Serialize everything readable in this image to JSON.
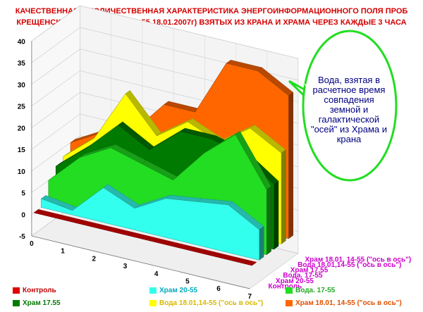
{
  "title": {
    "line1": "КАЧЕСТВЕННАЯ И КОЛИЧЕСТВЕННАЯ ХАРАКТЕРИСТИКА ЭНЕРГОИНФОРМАЦИОННОГО ПОЛЯ ПРОБ",
    "line2": "КРЕЩЕНСКОЙ ВОДЫ, (max в 14-55 18.01.2007г) ВЗЯТЫХ ИЗ КРАНА И ХРАМА ЧЕРЕЗ КАЖДЫЕ 3 ЧАСА"
  },
  "callout": "Вода, взятая в расчетное время совпадения земной и галактической \"осей\" из Храма и крана",
  "chart_data": {
    "type": "area",
    "subtype": "3d-area",
    "x": [
      0,
      1,
      2,
      3,
      4,
      5,
      6,
      7
    ],
    "ylim": [
      -5,
      40
    ],
    "yticks": [
      -5,
      0,
      5,
      10,
      15,
      20,
      25,
      30,
      35,
      40
    ],
    "grid": true,
    "legend_position": "bottom",
    "series": [
      {
        "name": "Контроль",
        "color": "#e00000",
        "values": [
          0,
          0,
          0,
          0,
          0,
          0,
          0,
          0
        ]
      },
      {
        "name": "Храм 20-55",
        "color": "#33ffee",
        "values": [
          2,
          1,
          8,
          5,
          9,
          10,
          11,
          7
        ]
      },
      {
        "name": "Вода. 17-55",
        "color": "#22dd22",
        "values": [
          5,
          12,
          16,
          14,
          12,
          20,
          26,
          15
        ]
      },
      {
        "name": "Храм 17.55",
        "color": "#007a00",
        "values": [
          7,
          13,
          20,
          16,
          22,
          22,
          20,
          15
        ]
      },
      {
        "name": "Вода  18.01,14-55 (\"ось в ось\")",
        "color": "#ffff00",
        "values": [
          8,
          14,
          26,
          18,
          23,
          20,
          25,
          21
        ]
      },
      {
        "name": "Храм 18.01, 14-55 (\"ось в ось\")",
        "color": "#ff6600",
        "values": [
          10,
          14,
          16,
          24,
          24,
          37,
          37,
          33
        ]
      }
    ]
  },
  "depth_labels": [
    "Контроль",
    "Храм 20-55",
    "Вода. 17-55",
    "Храм 17.55",
    "Вода  18.01,14-55 (\"ось в ось\")",
    "Храм 18.01, 14-55 (\"ось в ось\")"
  ],
  "legend": [
    {
      "label": "Контроль",
      "color": "#e00000",
      "text_color": "#c00000"
    },
    {
      "label": "Храм 20-55",
      "color": "#33ffee",
      "text_color": "#00aabb"
    },
    {
      "label": "Вода. 17-55",
      "color": "#22dd22",
      "text_color": "#22aa22"
    },
    {
      "label": "Храм 17.55",
      "color": "#007a00",
      "text_color": "#007a00"
    },
    {
      "label": "Вода  18.01,14-55 (\"ось в ось\")",
      "color": "#ffff00",
      "text_color": "#d8b800"
    },
    {
      "label": "Храм 18.01, 14-55 (\"ось в ось\")",
      "color": "#ff6600",
      "text_color": "#e05000"
    }
  ]
}
